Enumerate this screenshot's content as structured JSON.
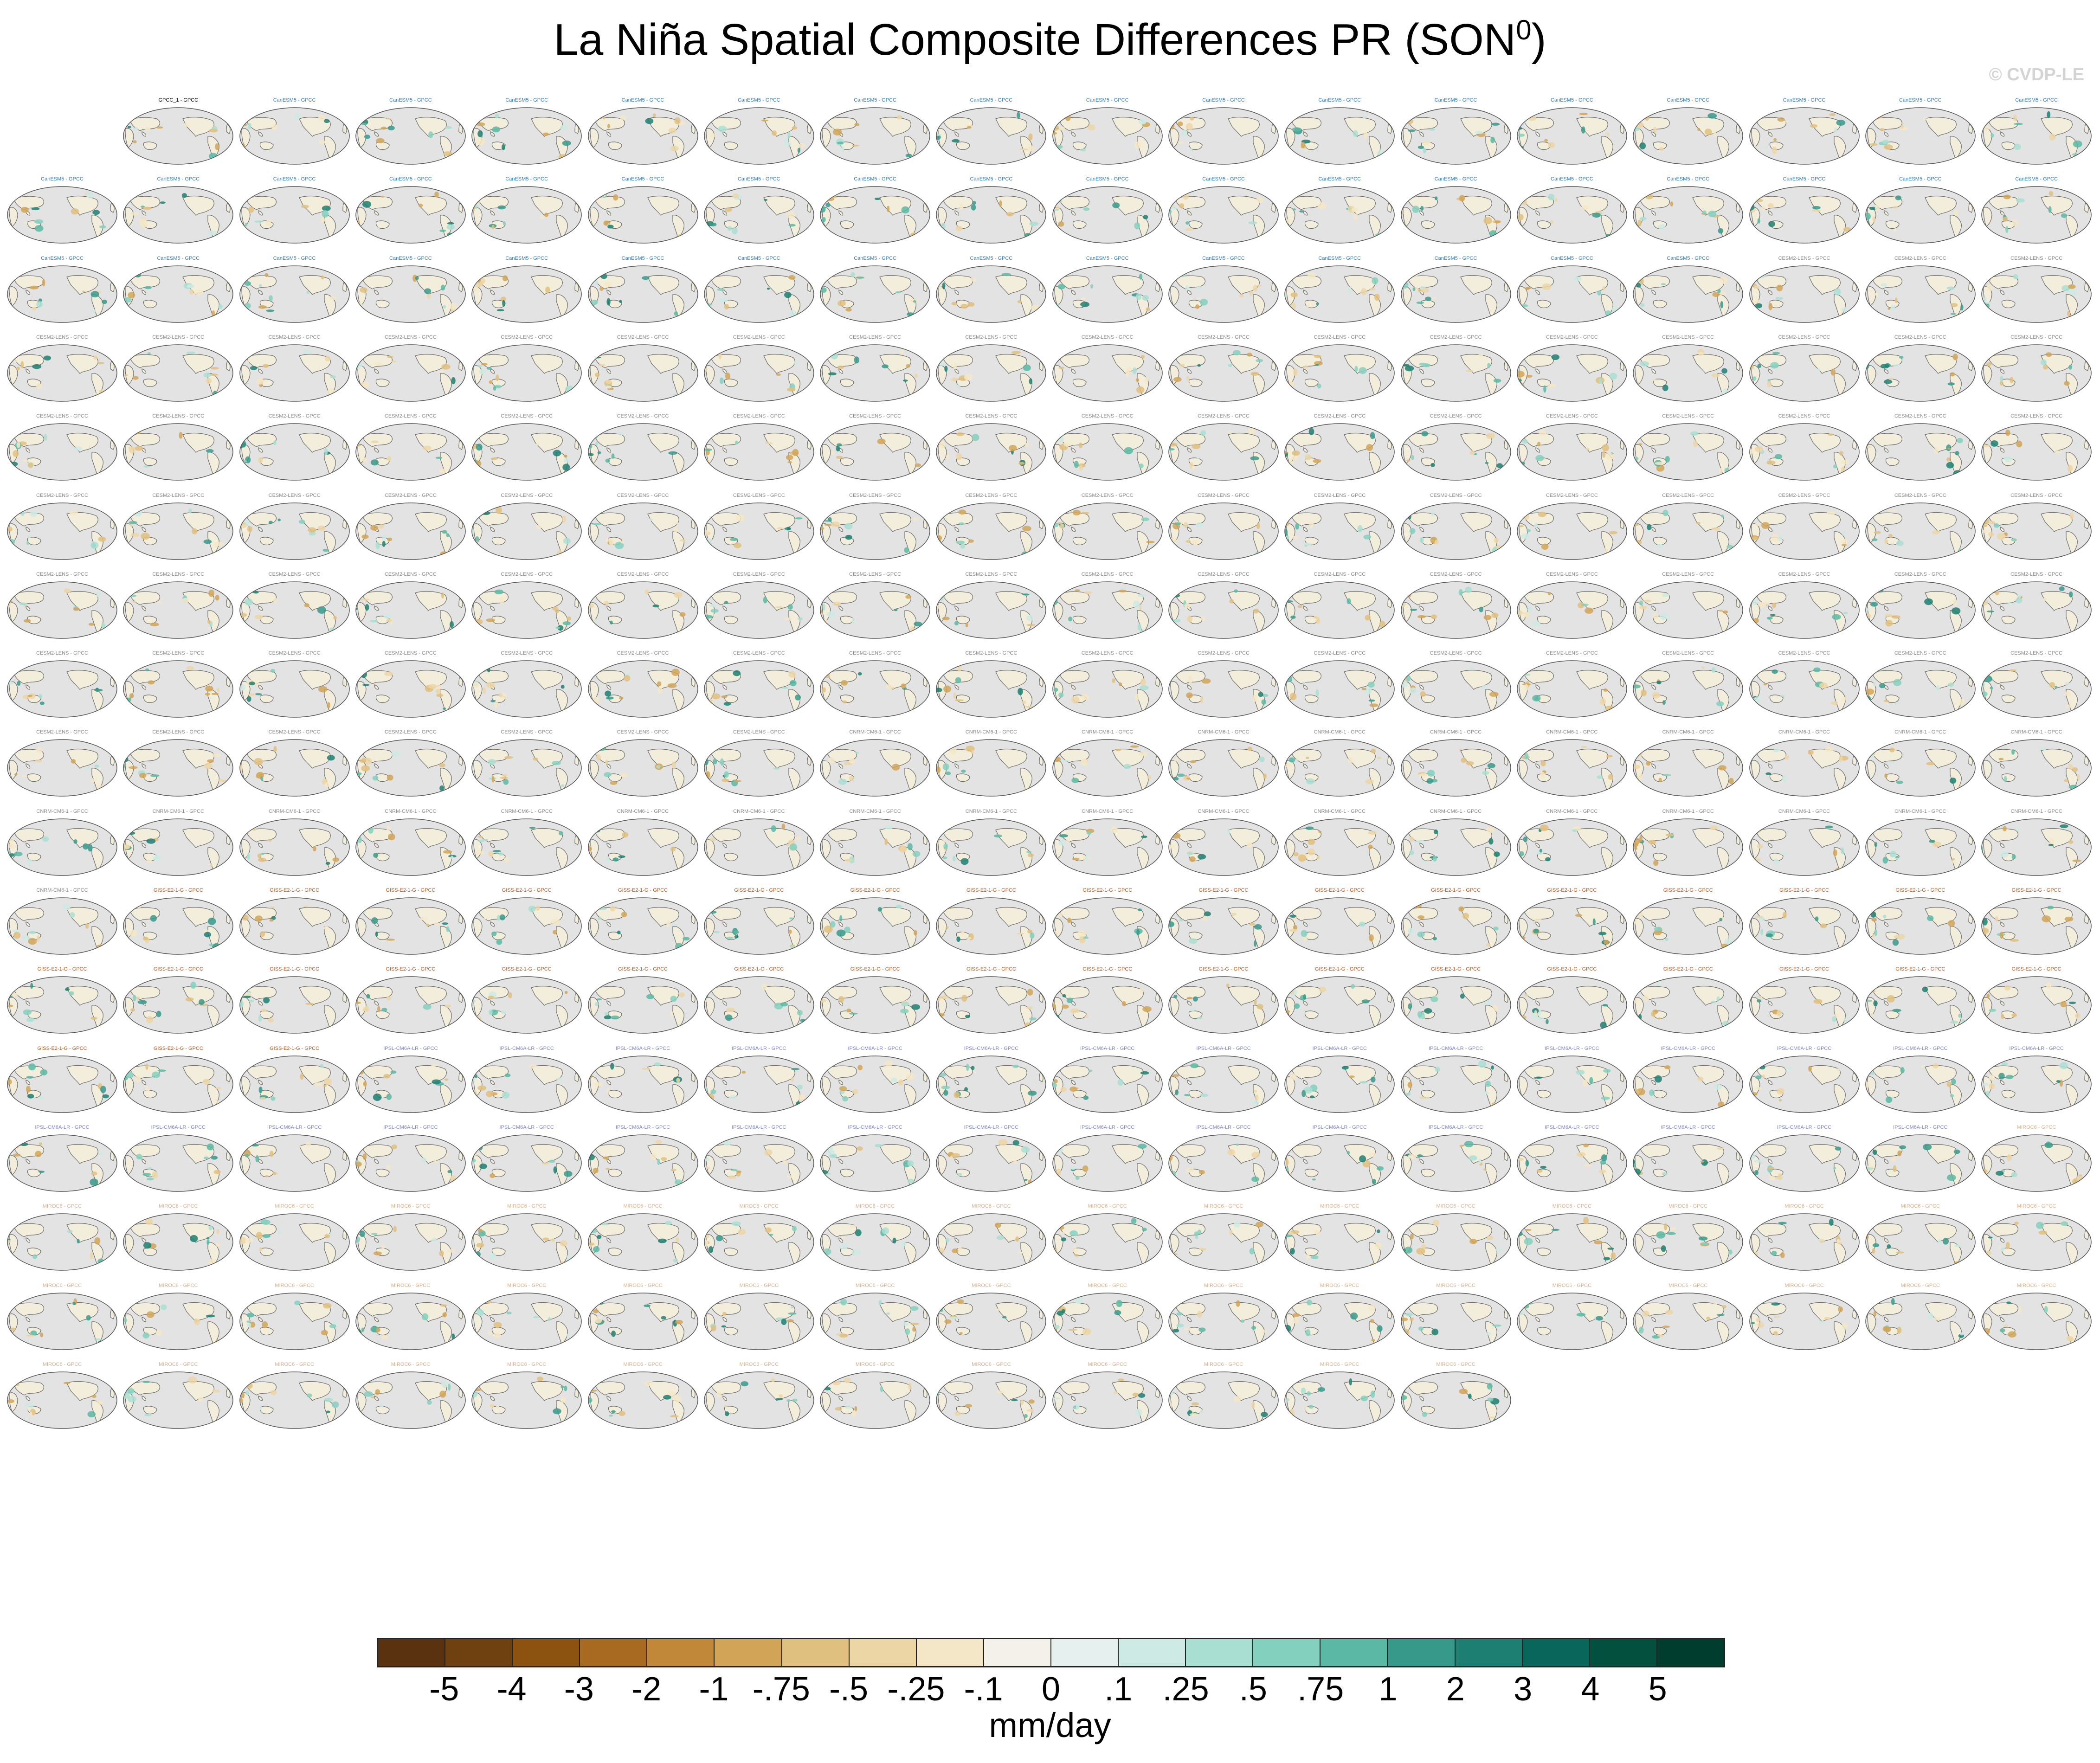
{
  "figure": {
    "title": "La Niña Spatial Composite Differences PR (SON",
    "title_superscript": "0",
    "title_suffix": ")",
    "watermark": "© CVDP-LE",
    "units": "mm/day"
  },
  "colorbar": {
    "colors": [
      "#5a3210",
      "#6f4010",
      "#8c520f",
      "#a86a20",
      "#c08838",
      "#d1a457",
      "#e0c07e",
      "#ecd6a6",
      "#f4e7c7",
      "#f4f1ea",
      "#e6f1ef",
      "#cdeae4",
      "#a9dfd3",
      "#84d0bf",
      "#5ab8a4",
      "#37998a",
      "#1d7f71",
      "#08665a",
      "#04503f",
      "#003d2f"
    ],
    "labels": [
      "-5",
      "-4",
      "-3",
      "-2",
      "-1",
      "-.75",
      "-.5",
      "-.25",
      "-.1",
      "0",
      ".1",
      ".25",
      ".5",
      ".75",
      "1",
      "2",
      "3",
      "4",
      "5"
    ]
  },
  "panel_groups": [
    {
      "name": "GPCC_1 - GPCC",
      "count": 1,
      "label_color": "#000000"
    },
    {
      "name": "CanESM5 - GPCC",
      "count": 49,
      "label_color": "#2f7db8"
    },
    {
      "name": "CESM2-LENS - GPCC",
      "count": 100,
      "label_color": "#8a8a8a"
    },
    {
      "name": "CNRM-CM6-1 - GPCC",
      "count": 30,
      "label_color": "#8a8a8a"
    },
    {
      "name": "GISS-E2-1-G - GPCC",
      "count": 38,
      "label_color": "#b85a1c"
    },
    {
      "name": "IPSL-CM6A-LR - GPCC",
      "count": 32,
      "label_color": "#7f86c9"
    },
    {
      "name": "MIROC6 - GPCC",
      "count": 50,
      "label_color": "#d8b08a"
    }
  ]
}
